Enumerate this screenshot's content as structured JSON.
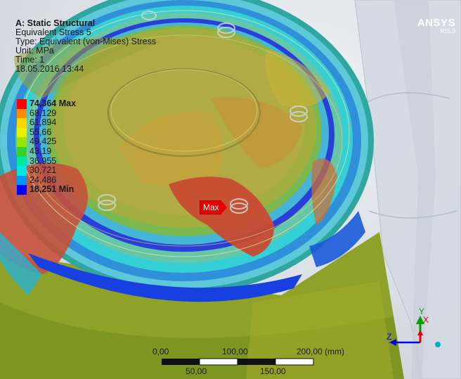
{
  "analysis": {
    "system": "A: Static Structural",
    "result_name": "Equivalent Stress 5",
    "type": "Type: Equivalent (von-Mises) Stress",
    "unit": "Unit: MPa",
    "time": "Time: 1",
    "date": "18.05.2016 13:44"
  },
  "brand": {
    "name": "ANSYS",
    "version": "R15.0"
  },
  "legend": [
    {
      "label": "74,364 Max",
      "color": "#ff0000",
      "bold": true
    },
    {
      "label": "68,129",
      "color": "#ff8c00",
      "bold": false
    },
    {
      "label": "61,894",
      "color": "#ffd700",
      "bold": false
    },
    {
      "label": "55,66",
      "color": "#e6f000",
      "bold": false
    },
    {
      "label": "49,425",
      "color": "#9be600",
      "bold": false
    },
    {
      "label": "43,19",
      "color": "#32d232",
      "bold": false
    },
    {
      "label": "36,955",
      "color": "#00e6a0",
      "bold": false
    },
    {
      "label": "30,721",
      "color": "#00e6e6",
      "bold": false
    },
    {
      "label": "24,486",
      "color": "#0096ff",
      "bold": false
    },
    {
      "label": "18,251 Min",
      "color": "#0000ff",
      "bold": true
    }
  ],
  "probe": {
    "label": "Max"
  },
  "scale_bar": {
    "top_labels": [
      "0,00",
      "100,00",
      "200,00 (mm)"
    ],
    "bottom_labels": [
      "50,00",
      "150,00"
    ]
  },
  "triad": {
    "x": "X",
    "y": "Y",
    "z": "Z"
  },
  "colors": {
    "x_axis": "#e60000",
    "y_axis": "#00a000",
    "z_axis": "#0000e6",
    "origin": "#00b4b4"
  }
}
